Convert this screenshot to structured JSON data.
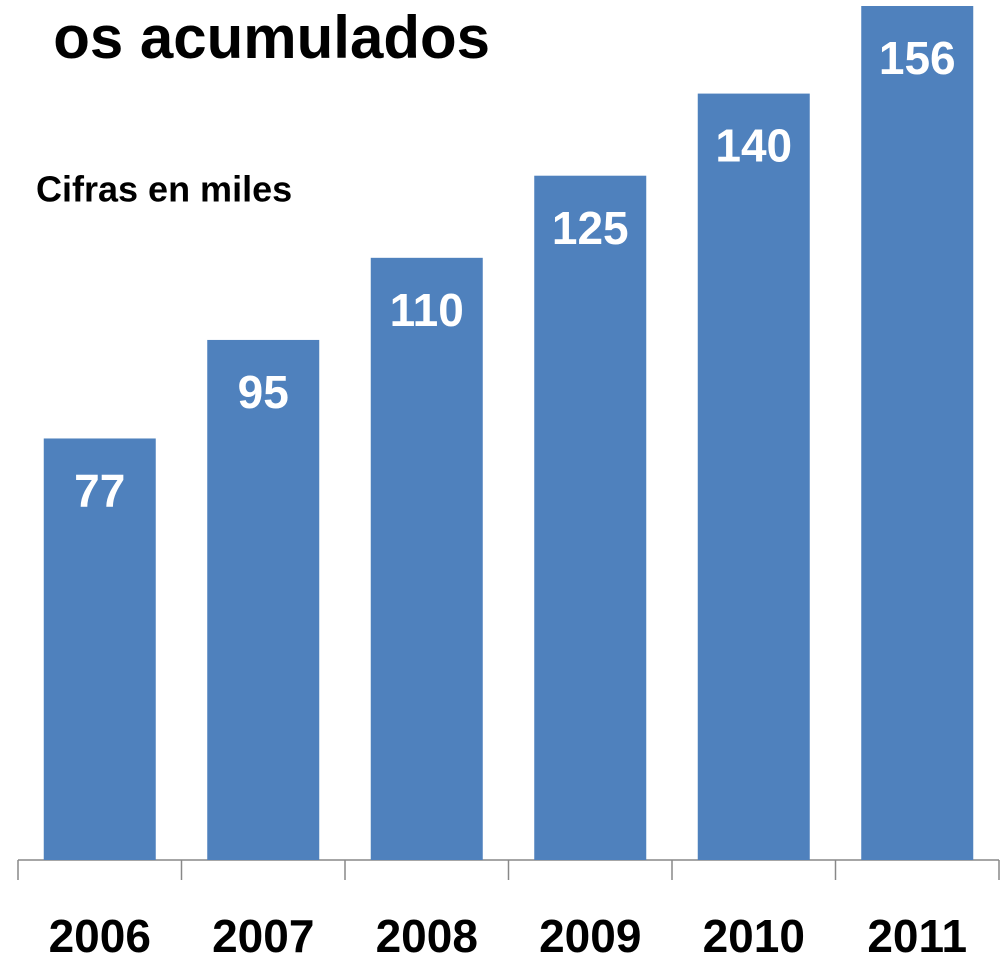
{
  "chart_data": {
    "type": "bar",
    "title": "os acumulados",
    "subtitle": "Cifras en miles",
    "categories": [
      "2006",
      "2007",
      "2008",
      "2009",
      "2010",
      "2011"
    ],
    "values": [
      77,
      95,
      110,
      125,
      140,
      156
    ],
    "color": "#4f81bd"
  }
}
